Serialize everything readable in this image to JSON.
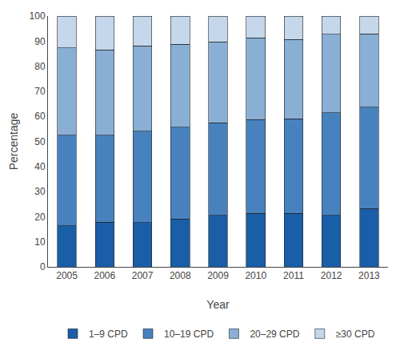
{
  "chart_data": {
    "type": "bar",
    "stacked": true,
    "categories": [
      "2005",
      "2006",
      "2007",
      "2008",
      "2009",
      "2010",
      "2011",
      "2012",
      "2013"
    ],
    "series": [
      {
        "name": "1–9 CPD",
        "color": "#1a5ea8",
        "values": [
          16.4,
          17.8,
          17.7,
          19.1,
          20.6,
          21.4,
          21.4,
          20.5,
          23.3
        ]
      },
      {
        "name": "10–19 CPD",
        "color": "#4882be",
        "values": [
          36.0,
          34.6,
          36.4,
          36.5,
          36.9,
          37.3,
          37.7,
          40.9,
          40.3
        ]
      },
      {
        "name": "20–29 CPD",
        "color": "#8aafd4",
        "values": [
          34.9,
          34.1,
          34.0,
          33.1,
          32.2,
          32.6,
          31.5,
          31.3,
          29.3
        ]
      },
      {
        "name": "≥30 CPD",
        "color": "#c5d7eb",
        "values": [
          12.7,
          13.5,
          11.9,
          11.3,
          10.3,
          8.7,
          9.4,
          7.3,
          7.1
        ]
      }
    ],
    "xlabel": "Year",
    "ylabel": "Percentage",
    "ylim": [
      0,
      100
    ],
    "yticks": [
      0,
      10,
      20,
      30,
      40,
      50,
      60,
      70,
      80,
      90,
      100
    ],
    "grid": false,
    "legend": "bottom"
  }
}
